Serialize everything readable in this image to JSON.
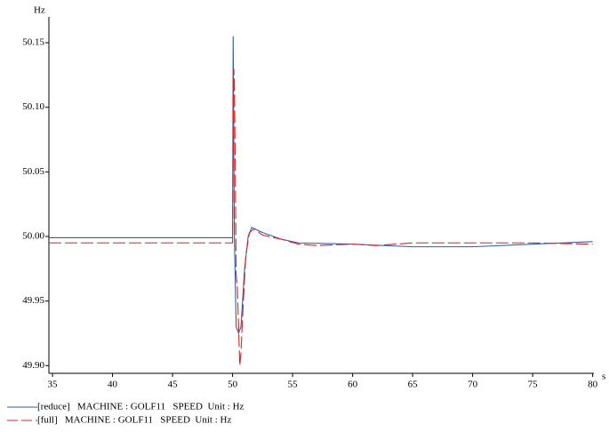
{
  "chart_data": {
    "type": "line",
    "y_label": "Hz",
    "x_label": "s",
    "xlim": [
      34.7,
      80.1
    ],
    "ylim": [
      49.894,
      50.17
    ],
    "xticks": [
      35,
      40,
      45,
      50,
      55,
      60,
      65,
      70,
      75,
      80
    ],
    "yticks": [
      {
        "value": 49.9,
        "label": "49.90"
      },
      49.95,
      {
        "value": 50,
        "label": "50.00"
      },
      50.05,
      {
        "value": 50.1,
        "label": "50.10"
      },
      50.15
    ],
    "series": [
      {
        "name": "[reduce]   MACHINE : GOLF11   SPEED  Unit : Hz",
        "color": "#2f5fa8",
        "dash": false,
        "x": [
          34.7,
          50,
          50.05,
          50.15,
          50.3,
          50.5,
          50.7,
          51.0,
          51.3,
          51.6,
          52.5,
          54,
          55.5,
          60,
          65,
          70,
          75,
          80
        ],
        "values": [
          49.999,
          49.999,
          50.155,
          50.0,
          49.93,
          49.925,
          49.93,
          49.975,
          50.0,
          50.007,
          50.003,
          49.998,
          49.995,
          49.994,
          49.992,
          49.992,
          49.994,
          49.996
        ]
      },
      {
        "name": "[full]   MACHINE : GOLF11   SPEED  Unit : Hz",
        "color": "#e02020",
        "dash": true,
        "x": [
          34.7,
          50,
          50.05,
          50.1,
          50.15,
          50.2,
          50.3,
          50.4,
          50.6,
          50.7,
          50.9,
          51.1,
          51.4,
          51.8,
          52.5,
          54,
          55.5,
          57,
          60,
          62,
          65,
          68,
          70,
          75,
          80
        ],
        "values": [
          49.995,
          49.995,
          50.08,
          50.13,
          50.12,
          50.08,
          49.97,
          49.96,
          49.9,
          49.91,
          49.95,
          49.985,
          50.003,
          50.006,
          50.001,
          49.998,
          49.994,
          49.993,
          49.994,
          49.993,
          49.995,
          49.995,
          49.995,
          49.995,
          49.994
        ]
      }
    ]
  }
}
